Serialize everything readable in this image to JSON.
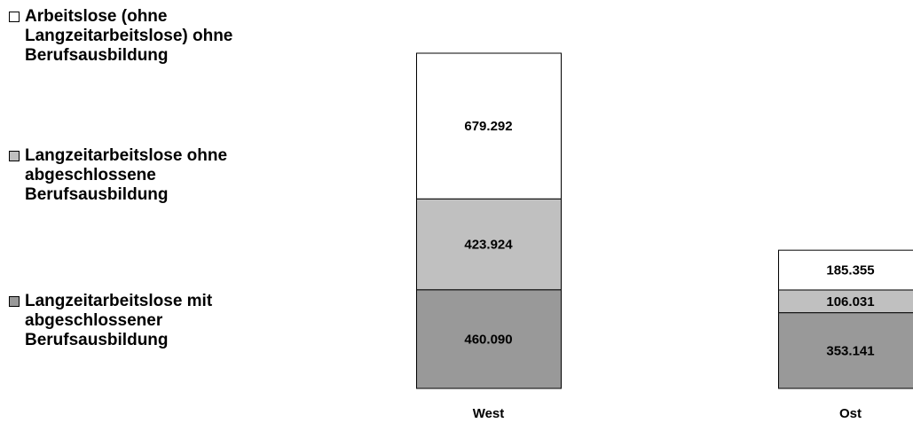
{
  "chart_data": {
    "type": "bar",
    "stacked": true,
    "categories": [
      "West",
      "Ost"
    ],
    "series": [
      {
        "name": "Langzeitarbeitslose mit abgeschlossener Berufsausbildung",
        "values": [
          460090,
          353141
        ],
        "labels": [
          "460.090",
          "353.141"
        ],
        "color": "#999999"
      },
      {
        "name": "Langzeitarbeitslose ohne abgeschlossene Berufsausbildung",
        "values": [
          423924,
          106031
        ],
        "labels": [
          "423.924",
          "106.031"
        ],
        "color": "#c0c0c0"
      },
      {
        "name": "Arbeitslose (ohne Langzeitarbeitslose) ohne Berufsausbildung",
        "values": [
          679292,
          185355
        ],
        "labels": [
          "679.292",
          "185.355"
        ],
        "color": "#ffffff"
      }
    ],
    "legend_order": [
      2,
      1,
      0
    ],
    "legend_lines": [
      [
        "Arbeitslose (ohne",
        "Langzeitarbeitslose) ohne",
        "Berufsausbildung"
      ],
      [
        "Langzeitarbeitslose ohne",
        "abgeschlossene",
        "Berufsausbildung"
      ],
      [
        "Langzeitarbeitslose mit",
        "abgeschlossener",
        "Berufsausbildung"
      ]
    ],
    "legend_position": "left",
    "grid": false
  }
}
